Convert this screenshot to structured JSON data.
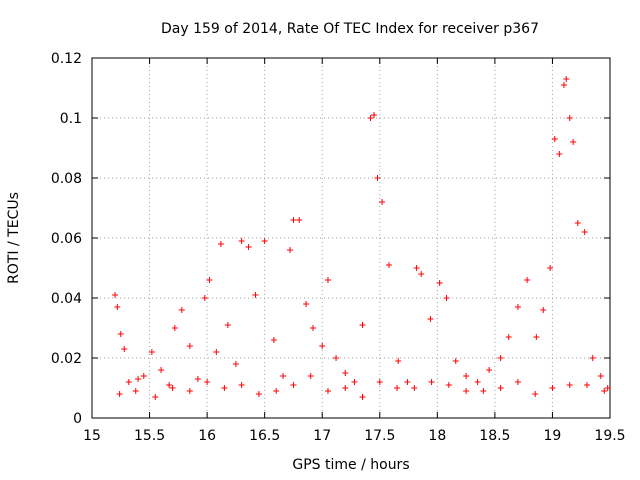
{
  "chart_data": {
    "type": "scatter",
    "title": "Day 159 of 2014, Rate Of TEC Index for receiver p367",
    "xlabel": "GPS time / hours",
    "ylabel": "ROTI / TECUs",
    "xlim": [
      15,
      19.5
    ],
    "ylim": [
      0,
      0.12
    ],
    "x_ticks": [
      15,
      15.5,
      16,
      16.5,
      17,
      17.5,
      18,
      18.5,
      19,
      19.5
    ],
    "x_tick_labels": [
      "15",
      "15.5",
      "16",
      "16.5",
      "17",
      "17.5",
      "18",
      "18.5",
      "19",
      "19.5"
    ],
    "y_ticks": [
      0,
      0.02,
      0.04,
      0.06,
      0.08,
      0.1,
      0.12
    ],
    "y_tick_labels": [
      "0",
      "0.02",
      "0.04",
      "0.06",
      "0.08",
      "0.1",
      "0.12"
    ],
    "grid": true,
    "marker": "+",
    "series_color": "#ff0000",
    "series": [
      {
        "name": "ROTI",
        "x": [
          15.2,
          15.22,
          15.25,
          15.28,
          15.32,
          15.38,
          15.45,
          15.52,
          15.6,
          15.67,
          15.72,
          15.78,
          15.85,
          15.92,
          15.98,
          16.02,
          16.08,
          16.12,
          16.18,
          16.25,
          16.3,
          16.36,
          16.42,
          16.5,
          16.58,
          16.66,
          16.72,
          16.75,
          16.8,
          16.86,
          16.92,
          17.0,
          17.05,
          17.12,
          17.2,
          17.28,
          17.35,
          17.42,
          17.45,
          17.48,
          17.52,
          17.58,
          17.66,
          17.74,
          17.82,
          17.86,
          17.94,
          18.02,
          18.08,
          18.16,
          18.25,
          18.35,
          18.45,
          18.55,
          18.62,
          18.7,
          18.78,
          18.86,
          18.92,
          18.98,
          19.02,
          19.06,
          19.1,
          19.12,
          19.15,
          19.18,
          19.22,
          19.28,
          19.35,
          19.42,
          19.48,
          15.24,
          15.55,
          15.85,
          16.15,
          16.45,
          16.75,
          17.05,
          17.35,
          17.65,
          17.95,
          18.25,
          18.55,
          18.85,
          19.15,
          19.45,
          15.4,
          15.7,
          16.0,
          16.3,
          16.6,
          16.9,
          17.2,
          17.5,
          17.8,
          18.1,
          18.4,
          18.7,
          19.0,
          19.3
        ],
        "y": [
          0.041,
          0.037,
          0.028,
          0.023,
          0.012,
          0.009,
          0.014,
          0.022,
          0.016,
          0.011,
          0.03,
          0.036,
          0.024,
          0.013,
          0.04,
          0.046,
          0.022,
          0.058,
          0.031,
          0.018,
          0.059,
          0.057,
          0.041,
          0.059,
          0.026,
          0.014,
          0.056,
          0.066,
          0.066,
          0.038,
          0.03,
          0.024,
          0.046,
          0.02,
          0.015,
          0.012,
          0.031,
          0.1,
          0.101,
          0.08,
          0.072,
          0.051,
          0.019,
          0.012,
          0.05,
          0.048,
          0.033,
          0.045,
          0.04,
          0.019,
          0.014,
          0.012,
          0.016,
          0.02,
          0.027,
          0.037,
          0.046,
          0.027,
          0.036,
          0.05,
          0.093,
          0.088,
          0.111,
          0.113,
          0.1,
          0.092,
          0.065,
          0.062,
          0.02,
          0.014,
          0.01,
          0.008,
          0.007,
          0.009,
          0.01,
          0.008,
          0.011,
          0.009,
          0.007,
          0.01,
          0.012,
          0.009,
          0.01,
          0.008,
          0.011,
          0.009,
          0.013,
          0.01,
          0.012,
          0.011,
          0.009,
          0.014,
          0.01,
          0.012,
          0.01,
          0.011,
          0.009,
          0.012,
          0.01,
          0.011
        ]
      }
    ]
  }
}
